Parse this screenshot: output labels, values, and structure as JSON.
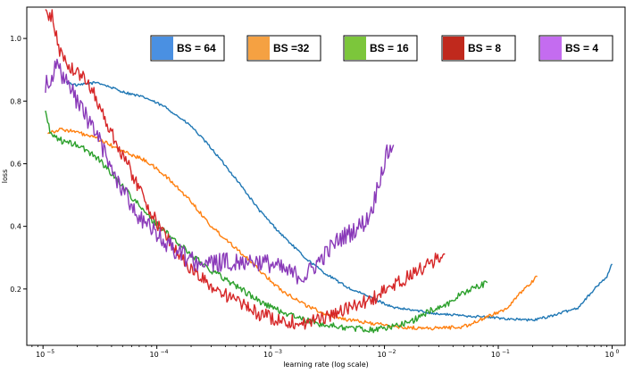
{
  "chart_data": {
    "type": "line",
    "xlabel": "learning rate (log scale)",
    "ylabel": "loss",
    "xscale": "log",
    "xlim": [
      7.2e-06,
      1.3
    ],
    "ylim": [
      0.02,
      1.1
    ],
    "xticks": [
      {
        "value": 1e-05,
        "base": "10",
        "exp": "−5"
      },
      {
        "value": 0.0001,
        "base": "10",
        "exp": "−4"
      },
      {
        "value": 0.001,
        "base": "10",
        "exp": "−3"
      },
      {
        "value": 0.01,
        "base": "10",
        "exp": "−2"
      },
      {
        "value": 0.1,
        "base": "10",
        "exp": "−1"
      },
      {
        "value": 1,
        "base": "10",
        "exp": "0"
      }
    ],
    "yticks": [
      {
        "value": 0.2,
        "label": "0.2"
      },
      {
        "value": 0.4,
        "label": "0.4"
      },
      {
        "value": 0.6,
        "label": "0.6"
      },
      {
        "value": 0.8,
        "label": "0.8"
      },
      {
        "value": 1.0,
        "label": "1.0"
      }
    ],
    "grid": false,
    "legend_position": "top",
    "series": [
      {
        "name": "BS = 64",
        "color": "#1f77b4",
        "legend_color": "#4a90e2",
        "noise": 0.004,
        "points": [
          [
            1.6e-05,
            0.86
          ],
          [
            2e-05,
            0.85
          ],
          [
            3e-05,
            0.86
          ],
          [
            5e-05,
            0.83
          ],
          [
            8e-05,
            0.81
          ],
          [
            0.00012,
            0.78
          ],
          [
            0.0002,
            0.72
          ],
          [
            0.0003,
            0.65
          ],
          [
            0.0005,
            0.55
          ],
          [
            0.0008,
            0.45
          ],
          [
            0.0012,
            0.38
          ],
          [
            0.002,
            0.3
          ],
          [
            0.003,
            0.25
          ],
          [
            0.005,
            0.2
          ],
          [
            0.008,
            0.17
          ],
          [
            0.012,
            0.14
          ],
          [
            0.02,
            0.13
          ],
          [
            0.03,
            0.12
          ],
          [
            0.05,
            0.115
          ],
          [
            0.08,
            0.11
          ],
          [
            0.12,
            0.105
          ],
          [
            0.2,
            0.1
          ],
          [
            0.3,
            0.115
          ],
          [
            0.5,
            0.14
          ],
          [
            0.7,
            0.2
          ],
          [
            0.9,
            0.24
          ],
          [
            1.0,
            0.28
          ]
        ]
      },
      {
        "name": "BS =32",
        "color": "#ff7f0e",
        "legend_color": "#f5a142",
        "noise": 0.006,
        "points": [
          [
            1.1e-05,
            0.7
          ],
          [
            1.5e-05,
            0.71
          ],
          [
            2e-05,
            0.7
          ],
          [
            3e-05,
            0.68
          ],
          [
            5e-05,
            0.64
          ],
          [
            8e-05,
            0.61
          ],
          [
            0.00012,
            0.56
          ],
          [
            0.0002,
            0.48
          ],
          [
            0.0003,
            0.4
          ],
          [
            0.0005,
            0.33
          ],
          [
            0.0008,
            0.26
          ],
          [
            0.0012,
            0.2
          ],
          [
            0.002,
            0.15
          ],
          [
            0.003,
            0.12
          ],
          [
            0.005,
            0.1
          ],
          [
            0.008,
            0.09
          ],
          [
            0.012,
            0.08
          ],
          [
            0.02,
            0.075
          ],
          [
            0.03,
            0.075
          ],
          [
            0.05,
            0.08
          ],
          [
            0.08,
            0.11
          ],
          [
            0.12,
            0.14
          ],
          [
            0.17,
            0.2
          ],
          [
            0.22,
            0.24
          ]
        ]
      },
      {
        "name": "BS = 16",
        "color": "#2ca02c",
        "legend_color": "#7cc63b",
        "noise": 0.01,
        "points": [
          [
            1.05e-05,
            0.77
          ],
          [
            1.15e-05,
            0.7
          ],
          [
            1.5e-05,
            0.67
          ],
          [
            2e-05,
            0.66
          ],
          [
            3e-05,
            0.62
          ],
          [
            5e-05,
            0.53
          ],
          [
            8e-05,
            0.44
          ],
          [
            0.00012,
            0.38
          ],
          [
            0.0002,
            0.31
          ],
          [
            0.0003,
            0.26
          ],
          [
            0.0005,
            0.21
          ],
          [
            0.0008,
            0.16
          ],
          [
            0.0012,
            0.13
          ],
          [
            0.002,
            0.1
          ],
          [
            0.003,
            0.085
          ],
          [
            0.005,
            0.075
          ],
          [
            0.008,
            0.07
          ],
          [
            0.012,
            0.08
          ],
          [
            0.018,
            0.1
          ],
          [
            0.025,
            0.13
          ],
          [
            0.035,
            0.15
          ],
          [
            0.05,
            0.19
          ],
          [
            0.08,
            0.22
          ]
        ]
      },
      {
        "name": "BS = 8",
        "color": "#d62728",
        "legend_color": "#c0291d",
        "noise": 0.022,
        "points": [
          [
            1.05e-05,
            1.08
          ],
          [
            1.2e-05,
            1.07
          ],
          [
            1.4e-05,
            0.96
          ],
          [
            1.8e-05,
            0.9
          ],
          [
            2.2e-05,
            0.88
          ],
          [
            2.8e-05,
            0.83
          ],
          [
            3.5e-05,
            0.74
          ],
          [
            5e-05,
            0.63
          ],
          [
            7e-05,
            0.52
          ],
          [
            0.0001,
            0.41
          ],
          [
            0.00015,
            0.32
          ],
          [
            0.0002,
            0.26
          ],
          [
            0.0003,
            0.21
          ],
          [
            0.0005,
            0.16
          ],
          [
            0.0008,
            0.12
          ],
          [
            0.0012,
            0.1
          ],
          [
            0.002,
            0.09
          ],
          [
            0.003,
            0.11
          ],
          [
            0.005,
            0.14
          ],
          [
            0.008,
            0.17
          ],
          [
            0.012,
            0.21
          ],
          [
            0.018,
            0.25
          ],
          [
            0.025,
            0.28
          ],
          [
            0.03,
            0.3
          ],
          [
            0.034,
            0.31
          ]
        ]
      },
      {
        "name": "BS = 4",
        "color": "#8a3ab9",
        "legend_color": "#c46cf0",
        "noise": 0.03,
        "points": [
          [
            1.05e-05,
            0.85
          ],
          [
            1.3e-05,
            0.91
          ],
          [
            1.6e-05,
            0.86
          ],
          [
            2e-05,
            0.8
          ],
          [
            3e-05,
            0.69
          ],
          [
            4e-05,
            0.58
          ],
          [
            5e-05,
            0.52
          ],
          [
            7e-05,
            0.43
          ],
          [
            0.0001,
            0.37
          ],
          [
            0.00015,
            0.32
          ],
          [
            0.0002,
            0.29
          ],
          [
            0.0003,
            0.28
          ],
          [
            0.0005,
            0.29
          ],
          [
            0.0007,
            0.29
          ],
          [
            0.001,
            0.28
          ],
          [
            0.0015,
            0.25
          ],
          [
            0.002,
            0.24
          ],
          [
            0.003,
            0.31
          ],
          [
            0.004,
            0.36
          ],
          [
            0.005,
            0.38
          ],
          [
            0.006,
            0.4
          ],
          [
            0.007,
            0.42
          ],
          [
            0.008,
            0.47
          ],
          [
            0.009,
            0.55
          ],
          [
            0.0105,
            0.63
          ],
          [
            0.012,
            0.66
          ]
        ]
      }
    ]
  }
}
